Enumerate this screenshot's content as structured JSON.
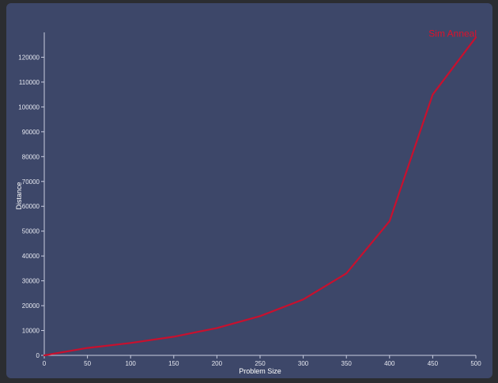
{
  "colors": {
    "background": "#2b2d31",
    "panel": "#3d4769",
    "axis": "#c9cde0",
    "series": "#c8102e",
    "series_label": "#e0102a"
  },
  "chart_data": {
    "type": "line",
    "title": "",
    "xlabel": "Problem Size",
    "ylabel": "Distance",
    "xlim": [
      0,
      500
    ],
    "ylim": [
      0,
      130000
    ],
    "x_ticks": [
      0,
      50,
      100,
      150,
      200,
      250,
      300,
      350,
      400,
      450,
      500
    ],
    "y_ticks": [
      0,
      10000,
      20000,
      30000,
      40000,
      50000,
      60000,
      70000,
      80000,
      90000,
      100000,
      110000,
      120000
    ],
    "grid": false,
    "legend": "end-of-line label",
    "series": [
      {
        "name": "Sim Anneal",
        "x": [
          0,
          50,
          100,
          150,
          200,
          250,
          300,
          350,
          400,
          450,
          500
        ],
        "values": [
          0,
          3000,
          5000,
          7500,
          11000,
          15800,
          22500,
          33000,
          54000,
          105000,
          128000
        ]
      }
    ]
  }
}
